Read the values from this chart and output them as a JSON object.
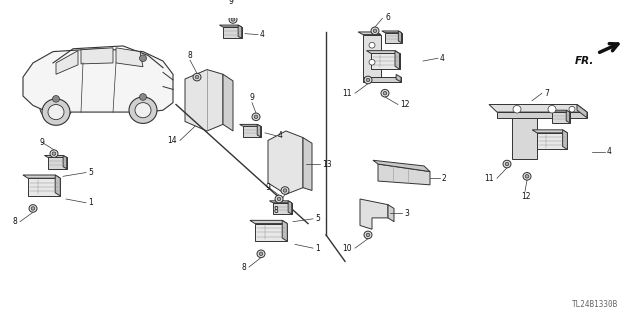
{
  "bg_color": "#ffffff",
  "line_color": "#333333",
  "text_color": "#111111",
  "fig_width": 6.4,
  "fig_height": 3.19,
  "dpi": 100,
  "watermark": "TL24B1330B",
  "fr_label": "FR.",
  "fs": 5.5,
  "lw": 0.7
}
